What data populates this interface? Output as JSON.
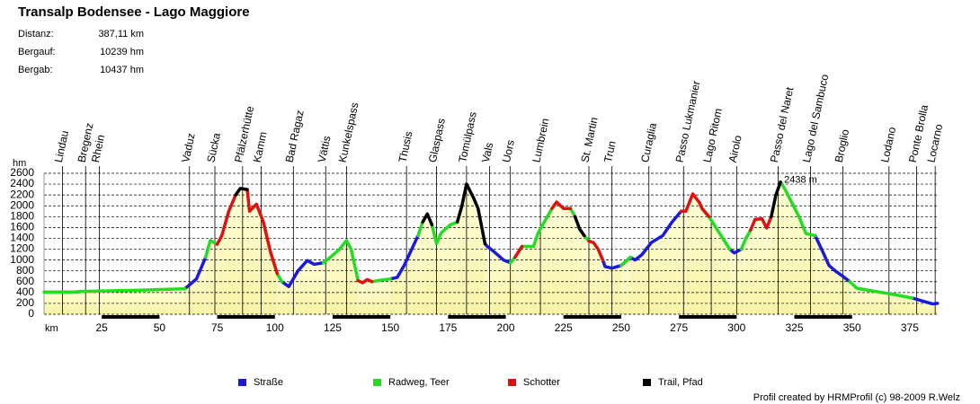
{
  "chart_data": {
    "type": "area",
    "title": "Transalp Bodensee - Lago Maggiore",
    "stats": [
      {
        "label": "Distanz:",
        "value": "387,11 km"
      },
      {
        "label": "Bergauf:",
        "value": "10239 hm"
      },
      {
        "label": "Bergab:",
        "value": "10437 hm"
      }
    ],
    "x_label": "km",
    "y_label": "hm",
    "xlim": [
      0,
      387.11
    ],
    "ylim": [
      0,
      2600
    ],
    "xticks": [
      25,
      50,
      75,
      100,
      125,
      150,
      175,
      200,
      225,
      250,
      275,
      300,
      325,
      350,
      375
    ],
    "yticks": [
      0,
      200,
      400,
      600,
      800,
      1000,
      1200,
      1400,
      1600,
      1800,
      2000,
      2200,
      2400,
      2600
    ],
    "grid": true,
    "legend": "bottom",
    "fill_color": "#f7f3a6",
    "x": [
      0,
      14,
      16,
      40,
      61,
      66,
      70,
      72,
      75,
      77,
      80,
      83,
      85,
      88,
      89,
      92,
      95,
      98,
      101,
      103,
      106,
      110,
      114,
      117,
      121,
      124,
      128,
      131,
      133,
      136,
      138,
      140,
      142,
      146,
      150,
      153,
      156,
      162,
      164,
      166,
      168,
      170,
      172,
      176,
      179,
      181,
      183,
      186,
      188,
      191,
      192,
      195,
      199,
      202,
      204,
      207,
      209,
      212,
      214,
      218,
      220,
      222,
      225,
      228,
      230,
      232,
      234,
      236,
      238,
      240,
      242,
      243,
      246,
      250,
      254,
      256,
      259,
      263,
      268,
      272,
      276,
      278,
      281,
      284,
      285,
      288,
      291,
      294,
      297,
      299,
      302,
      304,
      306,
      308,
      311,
      313,
      315,
      317,
      319,
      321,
      324,
      327,
      330,
      334,
      337,
      340,
      343,
      346,
      349,
      352,
      360,
      366,
      376,
      380,
      385,
      387
    ],
    "series": [
      {
        "name": "Straße",
        "color": "#1a1adc",
        "values": [
          null,
          410,
          420,
          null,
          470,
          650,
          1050,
          null,
          null,
          null,
          null,
          null,
          null,
          null,
          null,
          null,
          null,
          null,
          null,
          600,
          510,
          800,
          990,
          920,
          950,
          null,
          null,
          null,
          null,
          null,
          null,
          null,
          null,
          null,
          650,
          680,
          900,
          1450,
          null,
          null,
          null,
          null,
          null,
          null,
          null,
          null,
          null,
          null,
          null,
          1300,
          1250,
          1150,
          1000,
          950,
          null,
          null,
          null,
          null,
          null,
          null,
          null,
          null,
          null,
          null,
          null,
          null,
          null,
          null,
          null,
          null,
          1000,
          880,
          850,
          900,
          1050,
          1000,
          1100,
          1320,
          1450,
          1700,
          1900,
          null,
          null,
          null,
          null,
          null,
          null,
          null,
          1200,
          1130,
          1200,
          null,
          null,
          null,
          null,
          null,
          null,
          null,
          null,
          null,
          null,
          null,
          null,
          1450,
          1180,
          900,
          790,
          700,
          600,
          null,
          null,
          null,
          300,
          250,
          190,
          200
        ]
      },
      {
        "name": "Radweg, Teer",
        "color": "#22dd22",
        "values": [
          410,
          410,
          420,
          440,
          470,
          null,
          1050,
          1360,
          1290,
          null,
          null,
          null,
          null,
          null,
          null,
          null,
          null,
          null,
          750,
          600,
          null,
          null,
          null,
          null,
          950,
          1050,
          1200,
          1360,
          1200,
          620,
          null,
          null,
          600,
          630,
          650,
          null,
          null,
          1450,
          1700,
          null,
          1650,
          1300,
          1500,
          1650,
          1700,
          null,
          null,
          null,
          null,
          null,
          null,
          null,
          null,
          950,
          1050,
          1250,
          1250,
          1250,
          1500,
          1800,
          1950,
          null,
          null,
          1950,
          1800,
          null,
          1450,
          1350,
          null,
          null,
          null,
          null,
          null,
          900,
          1050,
          null,
          null,
          null,
          null,
          null,
          null,
          null,
          null,
          2050,
          1950,
          1800,
          1600,
          1400,
          1200,
          null,
          1200,
          1400,
          1550,
          null,
          null,
          null,
          null,
          null,
          2438,
          2300,
          2050,
          1800,
          1490,
          1450,
          null,
          null,
          null,
          null,
          600,
          480,
          420,
          380,
          300,
          null,
          null,
          null
        ]
      },
      {
        "name": "Schotter",
        "color": "#e01010",
        "values": [
          null,
          null,
          null,
          null,
          null,
          null,
          null,
          null,
          1290,
          1450,
          1900,
          2200,
          null,
          2300,
          1900,
          2030,
          1700,
          1160,
          750,
          null,
          null,
          null,
          null,
          null,
          null,
          null,
          null,
          null,
          null,
          620,
          580,
          640,
          600,
          null,
          null,
          null,
          null,
          null,
          null,
          null,
          null,
          null,
          null,
          null,
          null,
          null,
          null,
          null,
          null,
          null,
          null,
          null,
          null,
          null,
          1050,
          1250,
          null,
          null,
          null,
          null,
          1950,
          2070,
          1950,
          1950,
          null,
          null,
          null,
          1350,
          1320,
          1200,
          1000,
          null,
          null,
          null,
          null,
          null,
          null,
          null,
          null,
          null,
          1900,
          1900,
          2220,
          2050,
          1950,
          1800,
          null,
          null,
          null,
          null,
          null,
          null,
          1550,
          1750,
          1760,
          1590,
          1800,
          null,
          null,
          null,
          null,
          null,
          null,
          null,
          null,
          null,
          null,
          null,
          null,
          null,
          null,
          null,
          null,
          null,
          null,
          null
        ]
      },
      {
        "name": "Trail, Pfad",
        "color": "#000000",
        "values": [
          null,
          null,
          null,
          null,
          null,
          null,
          null,
          null,
          null,
          null,
          null,
          2200,
          2320,
          2300,
          null,
          null,
          null,
          null,
          null,
          null,
          null,
          null,
          null,
          null,
          null,
          null,
          null,
          null,
          null,
          null,
          null,
          null,
          null,
          null,
          null,
          null,
          null,
          null,
          1700,
          1850,
          1650,
          null,
          null,
          null,
          1700,
          2000,
          2400,
          2150,
          1950,
          1300,
          null,
          null,
          null,
          null,
          null,
          null,
          null,
          null,
          null,
          null,
          null,
          null,
          null,
          null,
          1800,
          1570,
          1450,
          null,
          null,
          null,
          null,
          null,
          null,
          null,
          null,
          null,
          null,
          null,
          null,
          null,
          null,
          null,
          null,
          null,
          null,
          null,
          null,
          null,
          null,
          null,
          null,
          null,
          null,
          null,
          null,
          null,
          1800,
          2200,
          2438,
          null,
          null,
          null,
          null,
          null,
          null,
          null,
          null,
          null,
          null,
          null,
          null,
          null,
          null,
          null,
          null,
          null
        ]
      }
    ],
    "waypoints": [
      {
        "label": "Lindau",
        "km": 8
      },
      {
        "label": "Bregenz",
        "km": 18
      },
      {
        "label": "Rhein",
        "km": 24
      },
      {
        "label": "Vaduz",
        "km": 63
      },
      {
        "label": "Sücka",
        "km": 74
      },
      {
        "label": "Pfälzerhütte",
        "km": 86
      },
      {
        "label": "Kamm",
        "km": 94
      },
      {
        "label": "Bad Ragaz",
        "km": 108
      },
      {
        "label": "Vättis",
        "km": 122
      },
      {
        "label": "Kunkelspass",
        "km": 131
      },
      {
        "label": "Thusis",
        "km": 157
      },
      {
        "label": "Glaspass",
        "km": 170
      },
      {
        "label": "Tomülpass",
        "km": 183
      },
      {
        "label": "Vals",
        "km": 193
      },
      {
        "label": "Uors",
        "km": 202
      },
      {
        "label": "Lumbrein",
        "km": 215
      },
      {
        "label": "St. Martin",
        "km": 236
      },
      {
        "label": "Trun",
        "km": 246
      },
      {
        "label": "Curaglia",
        "km": 262
      },
      {
        "label": "Passo Lukmanier",
        "km": 277
      },
      {
        "label": "Lago Ritom",
        "km": 289
      },
      {
        "label": "Airolo",
        "km": 300
      },
      {
        "label": "Passo del Naret",
        "km": 318
      },
      {
        "label": "Lago del Sambuco",
        "km": 332
      },
      {
        "label": "Broglio",
        "km": 346
      },
      {
        "label": "Lodano",
        "km": 366
      },
      {
        "label": "Ponte Brolla",
        "km": 378
      },
      {
        "label": "Locarno",
        "km": 386
      }
    ],
    "annotation": {
      "text": "2438 m",
      "x": 319,
      "y": 2438,
      "color": "#d02020"
    },
    "footer": "Profil created by HRMProfil (c) 98-2009 R.Welz"
  }
}
